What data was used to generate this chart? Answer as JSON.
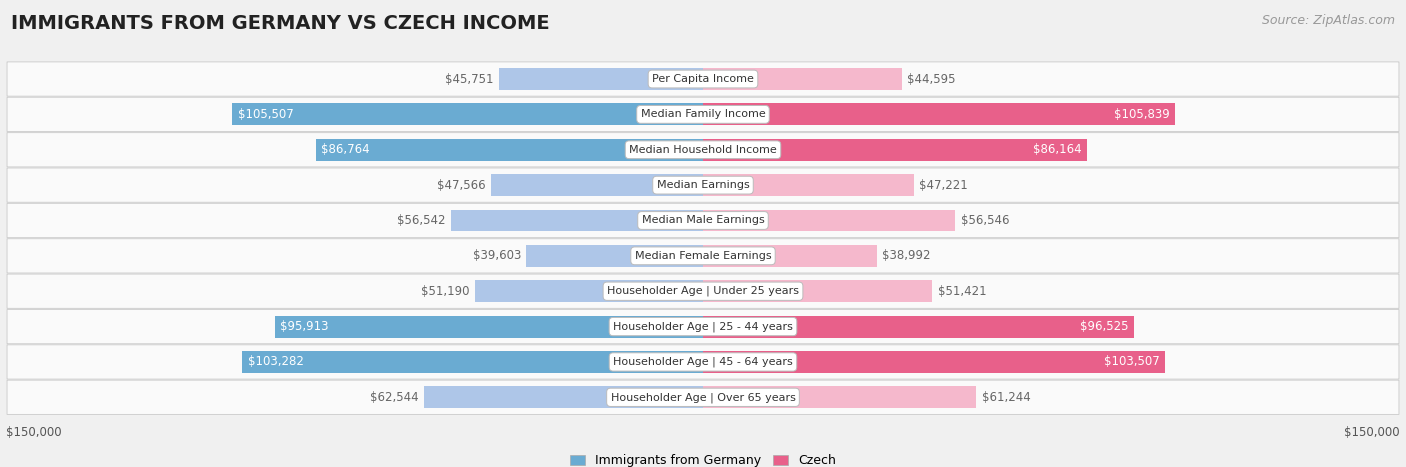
{
  "title": "IMMIGRANTS FROM GERMANY VS CZECH INCOME",
  "source": "Source: ZipAtlas.com",
  "categories": [
    "Per Capita Income",
    "Median Family Income",
    "Median Household Income",
    "Median Earnings",
    "Median Male Earnings",
    "Median Female Earnings",
    "Householder Age | Under 25 years",
    "Householder Age | 25 - 44 years",
    "Householder Age | 45 - 64 years",
    "Householder Age | Over 65 years"
  ],
  "germany_values": [
    45751,
    105507,
    86764,
    47566,
    56542,
    39603,
    51190,
    95913,
    103282,
    62544
  ],
  "czech_values": [
    44595,
    105839,
    86164,
    47221,
    56546,
    38992,
    51421,
    96525,
    103507,
    61244
  ],
  "germany_labels": [
    "$45,751",
    "$105,507",
    "$86,764",
    "$47,566",
    "$56,542",
    "$39,603",
    "$51,190",
    "$95,913",
    "$103,282",
    "$62,544"
  ],
  "czech_labels": [
    "$44,595",
    "$105,839",
    "$86,164",
    "$47,221",
    "$56,546",
    "$38,992",
    "$51,421",
    "$96,525",
    "$103,507",
    "$61,244"
  ],
  "max_value": 150000,
  "germany_color_light": "#aec6e8",
  "germany_color_dark": "#6aabd2",
  "czech_color_light": "#f5b8cc",
  "czech_color_dark": "#e8608a",
  "threshold": 80000,
  "background_color": "#f0f0f0",
  "row_bg_color": "#fafafa",
  "label_color_inside": "#ffffff",
  "label_color_outside": "#666666",
  "title_fontsize": 14,
  "source_fontsize": 9,
  "bar_label_fontsize": 8.5,
  "category_fontsize": 8,
  "axis_label_fontsize": 8.5,
  "legend_germany": "Immigrants from Germany",
  "legend_czech": "Czech"
}
